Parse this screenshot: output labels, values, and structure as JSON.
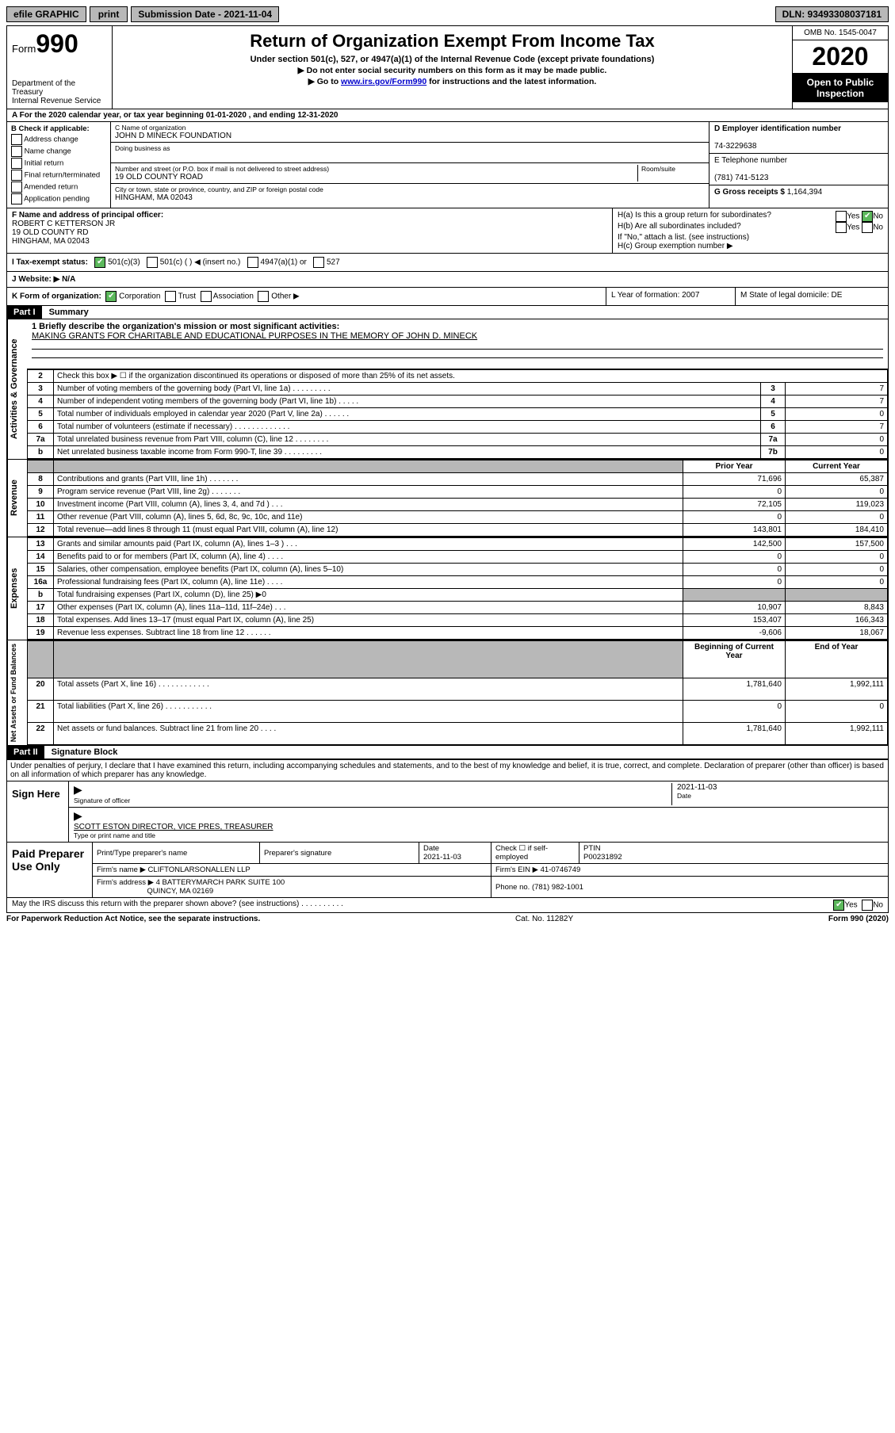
{
  "topbar": {
    "efile": "efile GRAPHIC",
    "print": "print",
    "submission_label": "Submission Date - 2021-11-04",
    "dln": "DLN: 93493308037181"
  },
  "header": {
    "form_word": "Form",
    "form_num": "990",
    "dept": "Department of the Treasury",
    "irs": "Internal Revenue Service",
    "title": "Return of Organization Exempt From Income Tax",
    "sub": "Under section 501(c), 527, or 4947(a)(1) of the Internal Revenue Code (except private foundations)",
    "line1": "▶ Do not enter social security numbers on this form as it may be made public.",
    "line2_pre": "▶ Go to ",
    "line2_link": "www.irs.gov/Form990",
    "line2_post": " for instructions and the latest information.",
    "omb": "OMB No. 1545-0047",
    "year": "2020",
    "open": "Open to Public Inspection"
  },
  "rowA": "A For the 2020 calendar year, or tax year beginning 01-01-2020    , and ending 12-31-2020",
  "boxB": {
    "title": "B Check if applicable:",
    "items": [
      "Address change",
      "Name change",
      "Initial return",
      "Final return/terminated",
      "Amended return",
      "Application pending"
    ]
  },
  "boxC": {
    "name_label": "C Name of organization",
    "name": "JOHN D MINECK FOUNDATION",
    "dba_label": "Doing business as",
    "street_label": "Number and street (or P.O. box if mail is not delivered to street address)",
    "room_label": "Room/suite",
    "street": "19 OLD COUNTY ROAD",
    "city_label": "City or town, state or province, country, and ZIP or foreign postal code",
    "city": "HINGHAM, MA  02043"
  },
  "boxD": {
    "label": "D Employer identification number",
    "ein": "74-3229638",
    "phone_label": "E Telephone number",
    "phone": "(781) 741-5123",
    "gross_label": "G Gross receipts $",
    "gross": "1,164,394"
  },
  "boxF": {
    "label": "F  Name and address of principal officer:",
    "name": "ROBERT C KETTERSON JR",
    "street": "19 OLD COUNTY RD",
    "city": "HINGHAM, MA  02043"
  },
  "boxH": {
    "ha": "H(a)  Is this a group return for subordinates?",
    "hb": "H(b)  Are all subordinates included?",
    "hb_note": "If \"No,\" attach a list. (see instructions)",
    "hc": "H(c)  Group exemption number ▶"
  },
  "rowI_label": "I    Tax-exempt status:",
  "rowI_opts": [
    "501(c)(3)",
    "501(c) (  ) ◀ (insert no.)",
    "4947(a)(1) or",
    "527"
  ],
  "rowJ": "J   Website: ▶  N/A",
  "rowK": {
    "left": "K Form of organization:",
    "opts": [
      "Corporation",
      "Trust",
      "Association",
      "Other ▶"
    ],
    "L": "L Year of formation: 2007",
    "M": "M State of legal domicile: DE"
  },
  "part1": {
    "tag": "Part I",
    "title": "Summary"
  },
  "part2": {
    "tag": "Part II",
    "title": "Signature Block"
  },
  "mission_label": "1  Briefly describe the organization's mission or most significant activities:",
  "mission": "MAKING GRANTS FOR CHARITABLE AND EDUCATIONAL PURPOSES IN THE MEMORY OF JOHN D. MINECK",
  "side_labels": {
    "ag": "Activities & Governance",
    "rev": "Revenue",
    "exp": "Expenses",
    "net": "Net Assets or Fund Balances"
  },
  "lines_top": [
    {
      "n": "2",
      "text": "Check this box ▶ ☐  if the organization discontinued its operations or disposed of more than 25% of its net assets."
    },
    {
      "n": "3",
      "text": "Number of voting members of the governing body (Part VI, line 1a)   .    .    .    .    .    .    .    .    .",
      "box": "3",
      "val": "7"
    },
    {
      "n": "4",
      "text": "Number of independent voting members of the governing body (Part VI, line 1b)   .    .    .    .    .",
      "box": "4",
      "val": "7"
    },
    {
      "n": "5",
      "text": "Total number of individuals employed in calendar year 2020 (Part V, line 2a)   .    .    .    .    .    .",
      "box": "5",
      "val": "0"
    },
    {
      "n": "6",
      "text": "Total number of volunteers (estimate if necessary)   .    .    .    .    .    .    .    .    .    .    .    .    .",
      "box": "6",
      "val": "7"
    },
    {
      "n": "7a",
      "text": "Total unrelated business revenue from Part VIII, column (C), line 12   .    .    .    .    .    .    .    .",
      "box": "7a",
      "val": "0"
    },
    {
      "n": "b",
      "text": "Net unrelated business taxable income from Form 990-T, line 39   .    .    .    .    .    .    .    .    .",
      "box": "7b",
      "val": "0"
    }
  ],
  "col_headers": {
    "prior": "Prior Year",
    "current": "Current Year"
  },
  "revenue": [
    {
      "n": "8",
      "text": "Contributions and grants (Part VIII, line 1h)   .    .    .    .    .    .    .",
      "p": "71,696",
      "c": "65,387"
    },
    {
      "n": "9",
      "text": "Program service revenue (Part VIII, line 2g)   .    .    .    .    .    .    .",
      "p": "0",
      "c": "0"
    },
    {
      "n": "10",
      "text": "Investment income (Part VIII, column (A), lines 3, 4, and 7d )   .    .    .",
      "p": "72,105",
      "c": "119,023"
    },
    {
      "n": "11",
      "text": "Other revenue (Part VIII, column (A), lines 5, 6d, 8c, 9c, 10c, and 11e)",
      "p": "0",
      "c": "0"
    },
    {
      "n": "12",
      "text": "Total revenue—add lines 8 through 11 (must equal Part VIII, column (A), line 12)",
      "p": "143,801",
      "c": "184,410"
    }
  ],
  "expenses": [
    {
      "n": "13",
      "text": "Grants and similar amounts paid (Part IX, column (A), lines 1–3 )   .    .    .",
      "p": "142,500",
      "c": "157,500"
    },
    {
      "n": "14",
      "text": "Benefits paid to or for members (Part IX, column (A), line 4)   .    .    .    .",
      "p": "0",
      "c": "0"
    },
    {
      "n": "15",
      "text": "Salaries, other compensation, employee benefits (Part IX, column (A), lines 5–10)",
      "p": "0",
      "c": "0"
    },
    {
      "n": "16a",
      "text": "Professional fundraising fees (Part IX, column (A), line 11e)   .    .    .    .",
      "p": "0",
      "c": "0"
    },
    {
      "n": "b",
      "text": "Total fundraising expenses (Part IX, column (D), line 25) ▶0",
      "p": "",
      "c": "",
      "grey": true
    },
    {
      "n": "17",
      "text": "Other expenses (Part IX, column (A), lines 11a–11d, 11f–24e)   .    .    .",
      "p": "10,907",
      "c": "8,843"
    },
    {
      "n": "18",
      "text": "Total expenses. Add lines 13–17 (must equal Part IX, column (A), line 25)",
      "p": "153,407",
      "c": "166,343"
    },
    {
      "n": "19",
      "text": "Revenue less expenses. Subtract line 18 from line 12   .    .    .    .    .    .",
      "p": "-9,606",
      "c": "18,067"
    }
  ],
  "net_headers": {
    "begin": "Beginning of Current Year",
    "end": "End of Year"
  },
  "net": [
    {
      "n": "20",
      "text": "Total assets (Part X, line 16)   .    .    .    .    .    .    .    .    .    .    .    .",
      "p": "1,781,640",
      "c": "1,992,111"
    },
    {
      "n": "21",
      "text": "Total liabilities (Part X, line 26)   .    .    .    .    .    .    .    .    .    .    .",
      "p": "0",
      "c": "0"
    },
    {
      "n": "22",
      "text": "Net assets or fund balances. Subtract line 21 from line 20   .    .    .    .",
      "p": "1,781,640",
      "c": "1,992,111"
    }
  ],
  "penalties": "Under penalties of perjury, I declare that I have examined this return, including accompanying schedules and statements, and to the best of my knowledge and belief, it is true, correct, and complete. Declaration of preparer (other than officer) is based on all information of which preparer has any knowledge.",
  "sign": {
    "left": "Sign Here",
    "sig_label": "Signature of officer",
    "date": "2021-11-03",
    "date_label": "Date",
    "name": "SCOTT ESTON  DIRECTOR, VICE PRES, TREASURER",
    "name_label": "Type or print name and title"
  },
  "paid": {
    "left": "Paid Preparer Use Only",
    "h1": "Print/Type preparer's name",
    "h2": "Preparer's signature",
    "h3": "Date",
    "h3v": "2021-11-03",
    "h4": "Check ☐ if self-employed",
    "h5": "PTIN",
    "ptin": "P00231892",
    "firm_label": "Firm's name    ▶",
    "firm": "CLIFTONLARSONALLEN LLP",
    "ein_label": "Firm's EIN ▶",
    "ein": "41-0746749",
    "addr_label": "Firm's address ▶",
    "addr1": "4 BATTERYMARCH PARK SUITE 100",
    "addr2": "QUINCY, MA  02169",
    "phone_label": "Phone no.",
    "phone": "(781) 982-1001"
  },
  "discuss": "May the IRS discuss this return with the preparer shown above? (see instructions)   .    .    .    .    .    .    .    .    .    .",
  "footer": {
    "left": "For Paperwork Reduction Act Notice, see the separate instructions.",
    "mid": "Cat. No. 11282Y",
    "right": "Form 990 (2020)"
  },
  "yes": "Yes",
  "no": "No"
}
